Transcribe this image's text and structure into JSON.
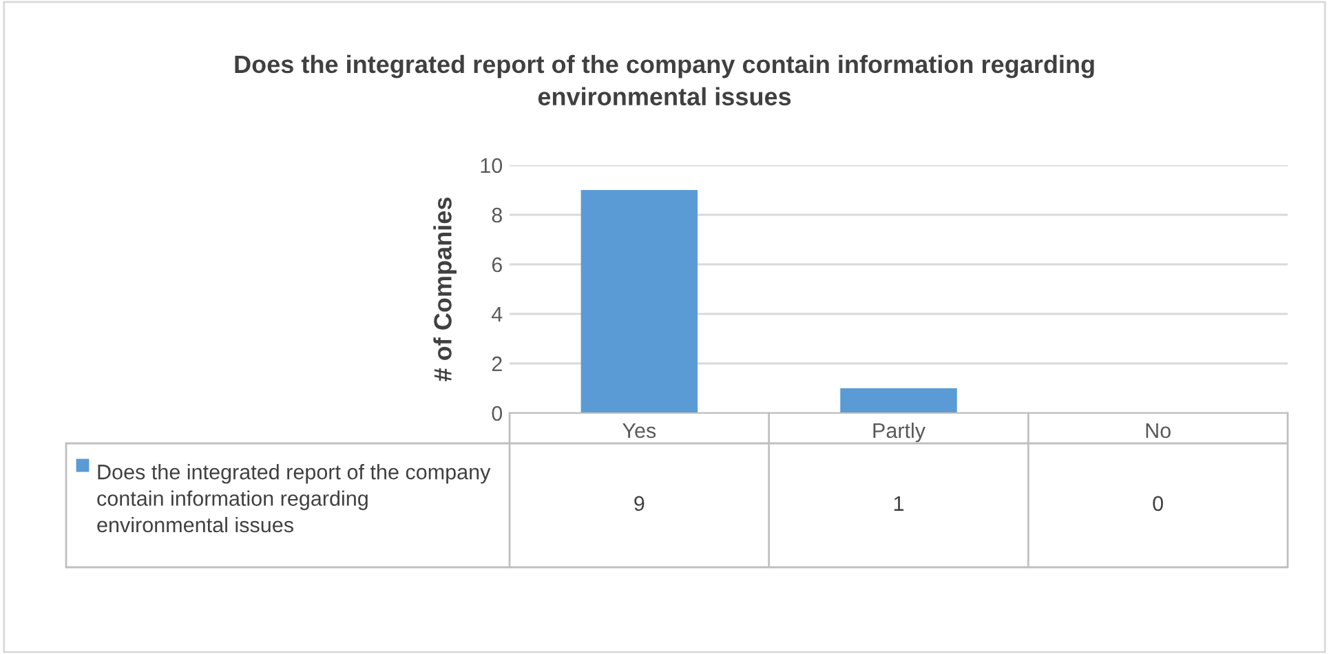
{
  "chart_data": {
    "type": "bar",
    "title": "Does the integrated report of the company contain information regarding environmental issues",
    "ylabel": "# of Companies",
    "categories": [
      "Yes",
      "Partly",
      "No"
    ],
    "series": [
      {
        "name": "Does the integrated report of the company contain information regarding environmental issues",
        "color": "#5b9bd5",
        "values": [
          9,
          1,
          0
        ]
      }
    ],
    "ylim": [
      0,
      10
    ],
    "yticks": [
      0,
      2,
      4,
      6,
      8,
      10
    ],
    "grid": "y",
    "legend": "bottom",
    "data_labels": true
  }
}
